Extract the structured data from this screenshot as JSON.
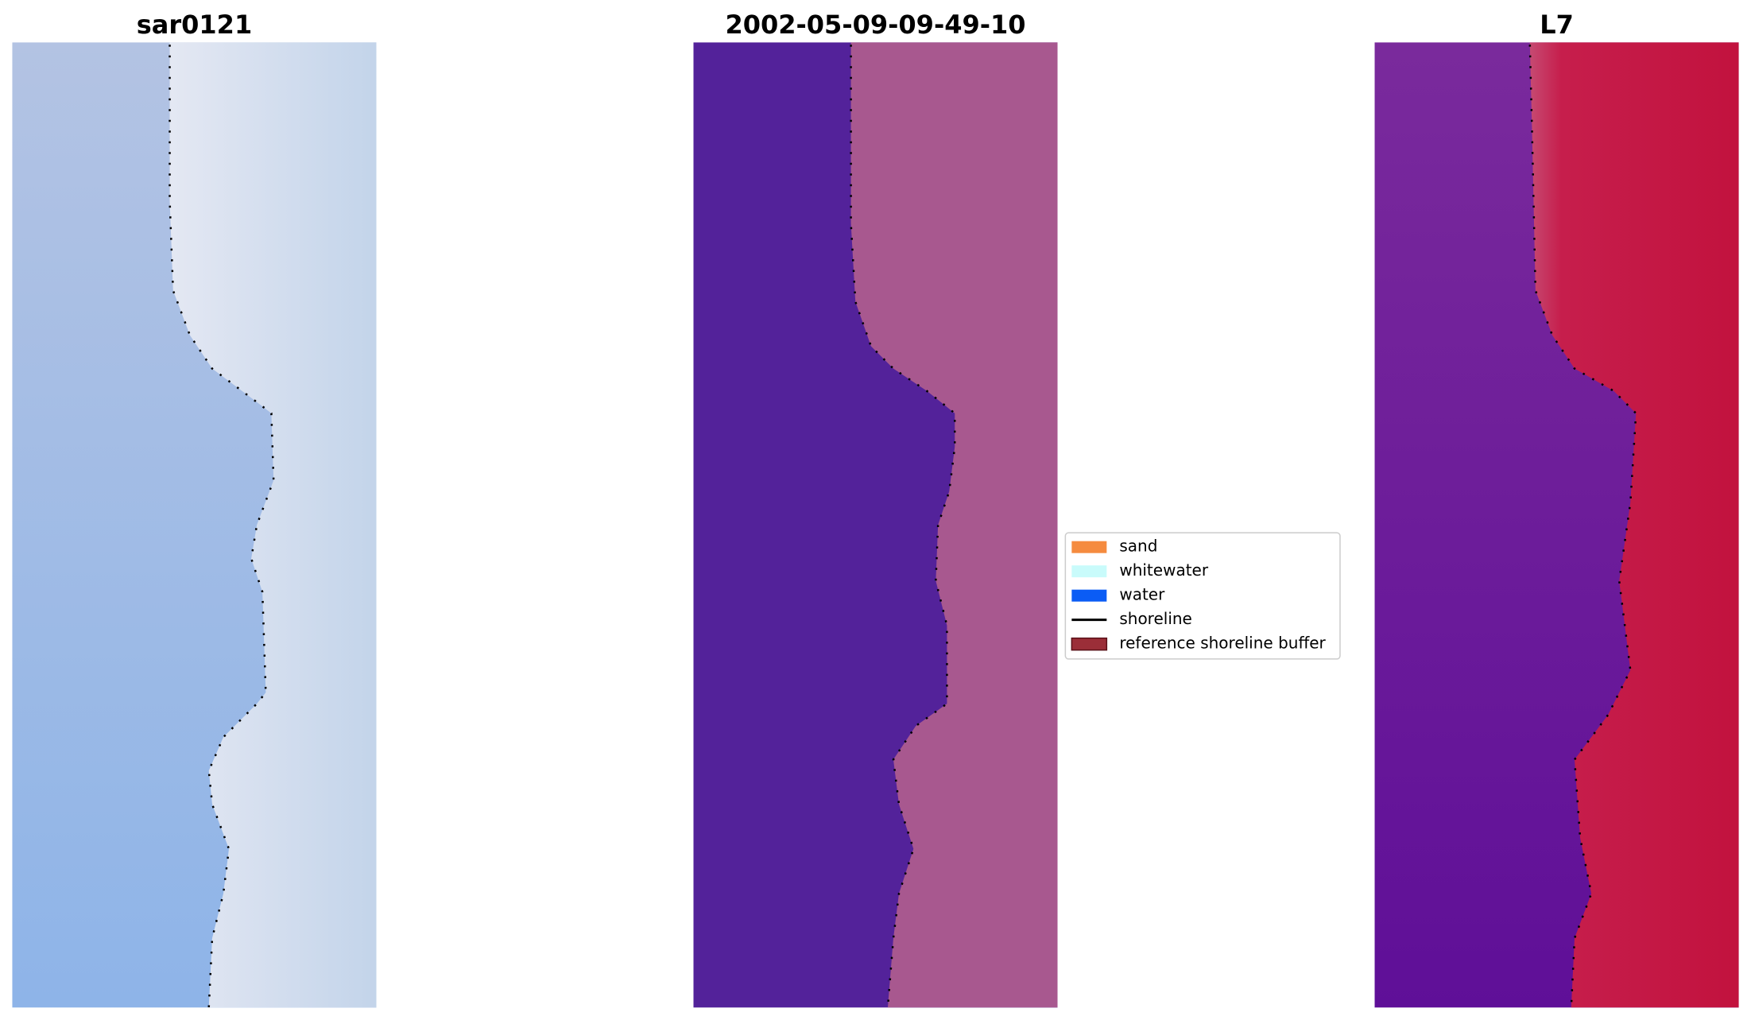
{
  "panels": [
    {
      "title": "sar0121"
    },
    {
      "title": "2002-05-09-09-49-10"
    },
    {
      "title": "L7"
    }
  ],
  "legend": [
    {
      "label": "sand",
      "color": "#f58b3f"
    },
    {
      "label": "whitewater",
      "color": "#c9fbfb"
    },
    {
      "label": "water",
      "color": "#0a5cf5"
    },
    {
      "label": "shoreline",
      "color": "#000000"
    },
    {
      "label": "reference shoreline buffer",
      "color": "#9b2e38"
    }
  ]
}
